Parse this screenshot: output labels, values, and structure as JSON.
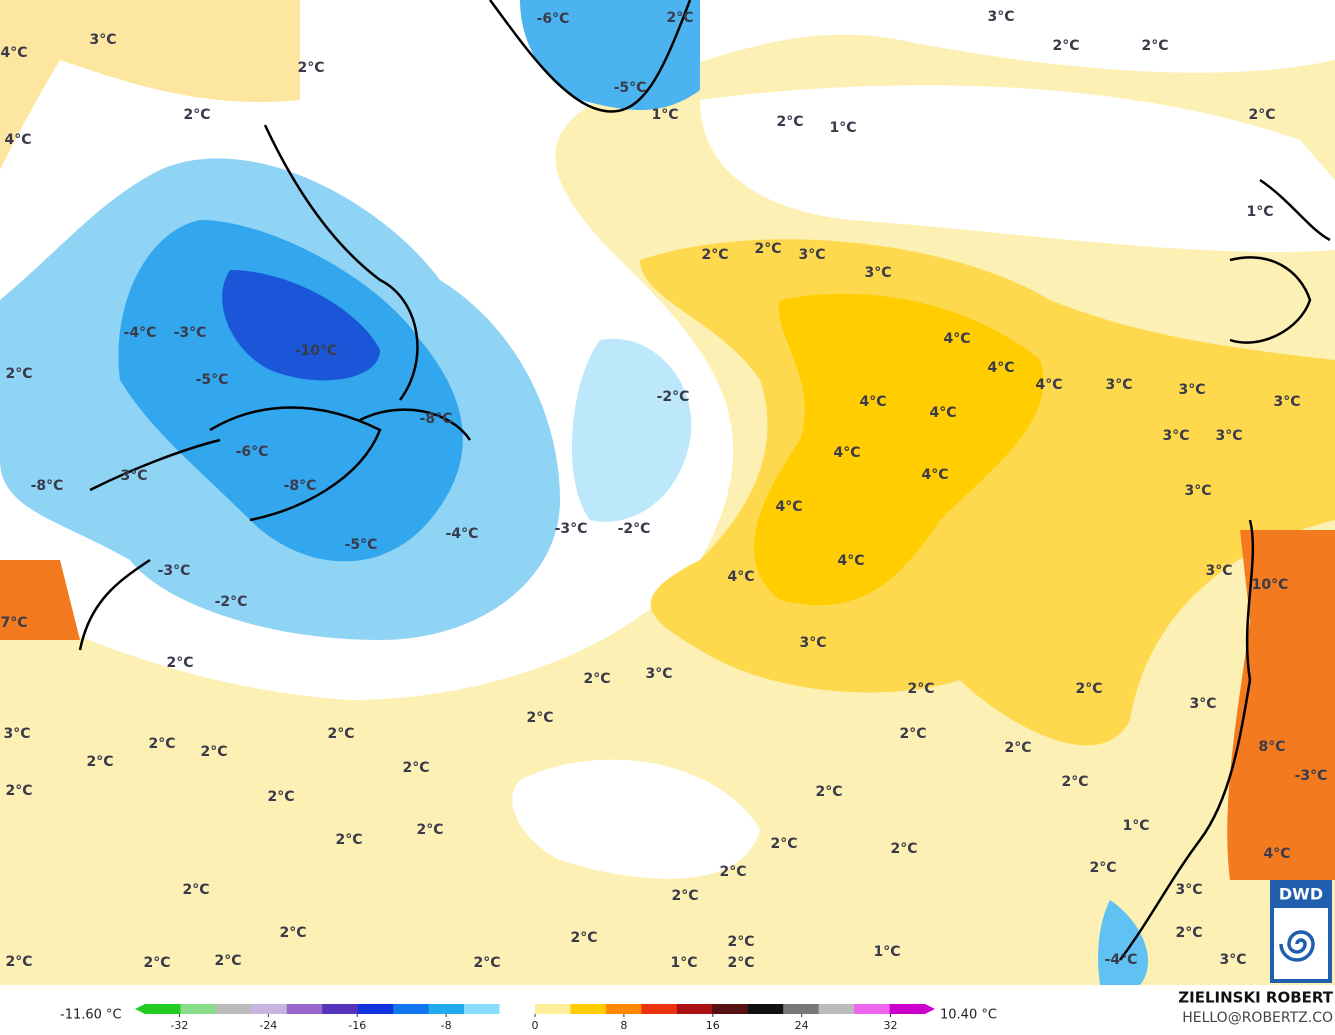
{
  "map": {
    "labels": [
      "3°C",
      "2°C",
      "4°C",
      "2°C",
      "4°C",
      "-6°C",
      "2°C",
      "-5°C",
      "1°C",
      "3°C",
      "2°C",
      "2°C",
      "2°C",
      "2°C",
      "1°C",
      "1°C",
      "2°C",
      "2°C",
      "3°C",
      "3°C",
      "-4°C",
      "-3°C",
      "-10°C",
      "2°C",
      "-5°C",
      "4°C",
      "4°C",
      "4°C",
      "3°C",
      "3°C",
      "3°C",
      "-2°C",
      "4°C",
      "4°C",
      "-8°C",
      "3°C",
      "3°C",
      "-6°C",
      "4°C",
      "4°C",
      "-8°C",
      "3°C",
      "-8°C",
      "3°C",
      "4°C",
      "-4°C",
      "-3°C",
      "-2°C",
      "-5°C",
      "4°C",
      "4°C",
      "3°C",
      "10°C",
      "-3°C",
      "-2°C",
      "7°C",
      "3°C",
      "2°C",
      "2°C",
      "3°C",
      "2°C",
      "2°C",
      "3°C",
      "2°C",
      "3°C",
      "2°C",
      "2°C",
      "2°C",
      "2°C",
      "2°C",
      "2°C",
      "2°C",
      "8°C",
      "-3°C",
      "2°C",
      "2°C",
      "2°C",
      "2°C",
      "2°C",
      "1°C",
      "2°C",
      "2°C",
      "2°C",
      "4°C",
      "2°C",
      "2°C",
      "2°C",
      "2°C",
      "3°C",
      "2°C",
      "2°C",
      "2°C",
      "2°C",
      "1°C",
      "2°C",
      "2°C",
      "2°C",
      "2°C",
      "1°C",
      "2°C",
      "-4°C",
      "3°C"
    ]
  },
  "colorbar": {
    "min_label": "-11.60 °C",
    "max_label": "10.40 °C",
    "range": [
      -36,
      36
    ],
    "ticks": [
      -32,
      -24,
      -16,
      -8,
      0,
      8,
      16,
      24,
      32
    ],
    "colors": [
      "#22cc22",
      "#88dd88",
      "#bbbbbb",
      "#c9b3e0",
      "#9966cc",
      "#5533bb",
      "#1133dd",
      "#1177ee",
      "#22aaee",
      "#88ddff",
      "#ffffff",
      "#ffee99",
      "#ffcc00",
      "#ff8800",
      "#ee3311",
      "#aa1111",
      "#551111",
      "#111111",
      "#777777",
      "#bbbbbb",
      "#ee66ee",
      "#cc00cc"
    ]
  },
  "credit": {
    "author": "ZIELINSKI ROBERT",
    "contact": "HELLO@ROBERTZ.CO",
    "logo": "DWD"
  }
}
